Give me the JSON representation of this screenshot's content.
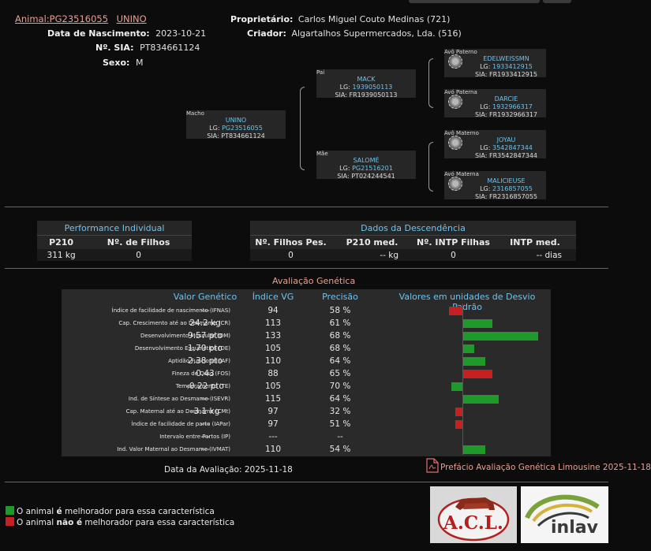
{
  "header": {
    "animal_label": "Animal:",
    "animal_id": "PG23516055",
    "animal_name": "UNINO",
    "birth_label": "Data de Nascimento:",
    "birth_value": "2023-10-21",
    "sia_label": "Nº. SIA:",
    "sia_value": "PT834661124",
    "sex_label": "Sexo:",
    "sex_value": "M",
    "owner_label": "Proprietário:",
    "owner_value": "Carlos Miguel Couto Medinas (721)",
    "breeder_label": "Criador:",
    "breeder_value": "Algartalhos Supermercados, Lda. (516)"
  },
  "pedigree": {
    "subject": {
      "rel": "Macho",
      "name": "UNINO",
      "lg_label": "LG:",
      "lg": "PG23516055",
      "sia": "SIA: PT834661124"
    },
    "sire": {
      "rel": "Pai",
      "name": "MACK",
      "lg_label": "LG:",
      "lg": "1939050113",
      "sia": "SIA: FR1939050113"
    },
    "dam": {
      "rel": "Mãe",
      "name": "SALOMÉ",
      "lg_label": "LG:",
      "lg": "PG21516201",
      "sia": "SIA: PT024244541"
    },
    "pat_grandsire": {
      "rel": "Avô Paterno",
      "name": "EDELWEISSMN",
      "lg_label": "LG:",
      "lg": "1933412915",
      "sia": "SIA: FR1933412915"
    },
    "pat_granddam": {
      "rel": "Avó Paterna",
      "name": "DARCIE",
      "lg_label": "LG:",
      "lg": "1932966317",
      "sia": "SIA: FR1932966317"
    },
    "mat_grandsire": {
      "rel": "Avô Materno",
      "name": "JOYAU",
      "lg_label": "LG:",
      "lg": "3542847344",
      "sia": "SIA: FR3542847344"
    },
    "mat_granddam": {
      "rel": "Avó Materna",
      "name": "MALICIEUSE",
      "lg_label": "LG:",
      "lg": "2316857055",
      "sia": "SIA: FR2316857055"
    }
  },
  "performance": {
    "title": "Performance Individual",
    "col1": "P210",
    "col2": "Nº. de Filhos",
    "val1": "311 kg",
    "val2": "0"
  },
  "descendencia": {
    "title": "Dados da Descendência",
    "cols": [
      "Nº. Filhos Pes.",
      "P210 med.",
      "Nº. INTP Filhas",
      "INTP med."
    ],
    "vals": [
      "0",
      "-- kg",
      "0",
      "-- dias"
    ]
  },
  "evaluation": {
    "title": "Avaliação Genética",
    "headers": {
      "valor": "Valor Genético",
      "indice": "Índice VG",
      "precisao": "Precisão",
      "dp": "Valores em unidades de Desvio Padrão"
    },
    "rows": [
      {
        "name": "Índice de facilidade de nascimento (IFNAS)",
        "valor": "---",
        "indice": "94",
        "precisao": "58 %",
        "dp": -0.6
      },
      {
        "name": "Cap. Crescimento até ao Desmame (CR)",
        "valor": "24.2 kg",
        "indice": "113",
        "precisao": "61 %",
        "dp": 1.3
      },
      {
        "name": "Desenvolvimento Muscular (DM)",
        "valor": "9.57 pto",
        "indice": "133",
        "precisao": "68 %",
        "dp": 3.3
      },
      {
        "name": "Desenvolvimento Esquelético (DE)",
        "valor": "1.70 pto",
        "indice": "105",
        "precisao": "68 %",
        "dp": 0.5
      },
      {
        "name": "Aptidão Funcional (AF)",
        "valor": "2.38 pto",
        "indice": "110",
        "precisao": "64 %",
        "dp": 1.0
      },
      {
        "name": "Fineza de Osso (FOS)",
        "valor": "0.43",
        "indice": "88",
        "precisao": "65 %",
        "dp": 1.3,
        "bad": true
      },
      {
        "name": "Temperamento (TE)",
        "valor": "-0.22 pto",
        "indice": "105",
        "precisao": "70 %",
        "dp": -0.5
      },
      {
        "name": "Ind. de Síntese ao Desmame (ISEVR)",
        "valor": "---",
        "indice": "115",
        "precisao": "64 %",
        "dp": 1.6
      },
      {
        "name": "Cap. Maternal até ao Desmame (CMt)",
        "valor": "-3.1 kg",
        "indice": "97",
        "precisao": "32 %",
        "dp": -0.3
      },
      {
        "name": "Índice de facilidade de parto (IAPar)",
        "valor": "---",
        "indice": "97",
        "precisao": "51 %",
        "dp": -0.3
      },
      {
        "name": "Intervalo entre Partos (IP)",
        "valor": "---",
        "indice": "---",
        "precisao": "--",
        "dp": 0
      },
      {
        "name": "Ind. Valor Maternal ao Desmame (IVMAT)",
        "valor": "---",
        "indice": "110",
        "precisao": "54 %",
        "dp": 1.0
      }
    ],
    "date_label": "Data da Avaliação: 2025-11-18",
    "preface_link": "Prefácio Avaliação Genética Limousine 2025-11-18"
  },
  "legend": {
    "good_prefix": "O animal ",
    "good_bold": "é",
    "good_suffix": " melhorador para essa característica",
    "bad_prefix": "O animal ",
    "bad_bold": "não é",
    "bad_suffix": " melhorador para essa característica",
    "good_color": "#1e9a2a",
    "bad_color": "#c62020"
  },
  "logos": {
    "acl_text": "A.C.L.",
    "inlav_text": "inlav"
  }
}
